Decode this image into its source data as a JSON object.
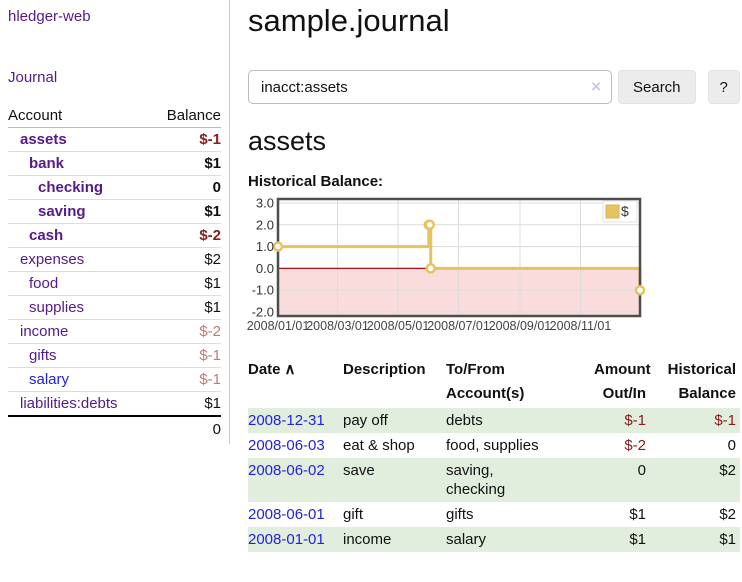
{
  "app": {
    "brand": "hledger-web"
  },
  "nav": {
    "journal": "Journal"
  },
  "sidebar": {
    "header": {
      "account": "Account",
      "balance": "Balance"
    },
    "accounts": [
      {
        "name": "assets",
        "balance": "$-1"
      },
      {
        "name": "bank",
        "balance": "$1"
      },
      {
        "name": "checking",
        "balance": "0"
      },
      {
        "name": "saving",
        "balance": "$1"
      },
      {
        "name": "cash",
        "balance": "$-2"
      },
      {
        "name": "expenses",
        "balance": "$2"
      },
      {
        "name": "food",
        "balance": "$1"
      },
      {
        "name": "supplies",
        "balance": "$1"
      },
      {
        "name": "income",
        "balance": "$-2"
      },
      {
        "name": "gifts",
        "balance": "$-1"
      },
      {
        "name": "salary",
        "balance": "$-1"
      },
      {
        "name": "liabilities:debts",
        "balance": "$1"
      }
    ],
    "total": "0"
  },
  "header": {
    "title": "sample.journal"
  },
  "search": {
    "value": "inacct:assets",
    "clear_icon": "×",
    "search_label": "Search",
    "help_label": "?"
  },
  "account_page": {
    "title": "assets",
    "chart_label": "Historical Balance:"
  },
  "chart_data": {
    "type": "line",
    "title": "Historical Balance",
    "series": [
      {
        "name": "$",
        "color": "#e6c35e",
        "points": [
          [
            "2008-01-01",
            1
          ],
          [
            "2008-06-01",
            2
          ],
          [
            "2008-06-02",
            2
          ],
          [
            "2008-06-03",
            0
          ],
          [
            "2008-12-31",
            -1
          ]
        ],
        "step": true
      }
    ],
    "xticks": [
      {
        "label": "2008/01/01",
        "day": 0
      },
      {
        "label": "2008/03/01",
        "day": 60
      },
      {
        "label": "2008/05/01",
        "day": 121
      },
      {
        "label": "2008/07/01",
        "day": 182
      },
      {
        "label": "2008/09/01",
        "day": 244
      },
      {
        "label": "2008/11/01",
        "day": 305
      }
    ],
    "x_total_days": 365,
    "yticks": [
      3.0,
      2.0,
      1.0,
      0.0,
      -1.0,
      -2.0
    ],
    "ylim": [
      -2,
      3
    ],
    "grid": true,
    "negative_region_color": "#fbdcdc",
    "zero_line_color": "#a81414",
    "border_color": "#4d4d4d",
    "legend": {
      "position": "top-right",
      "label": "$",
      "swatch_color": "#e6c35e"
    }
  },
  "register": {
    "columns": {
      "date": "Date",
      "description": "Description",
      "tofrom": "To/From\nAccount(s)",
      "amount": "Amount\nOut/In",
      "balance": "Historical\nBalance"
    },
    "sort_indicator": "∧",
    "rows": [
      {
        "date": "2008-12-31",
        "description": "pay off",
        "accounts": "debts",
        "amount": "$-1",
        "balance": "$-1"
      },
      {
        "date": "2008-06-03",
        "description": "eat & shop",
        "accounts": "food, supplies",
        "amount": "$-2",
        "balance": "0"
      },
      {
        "date": "2008-06-02",
        "description": "save",
        "accounts": "saving,\nchecking",
        "amount": "0",
        "balance": "$2"
      },
      {
        "date": "2008-06-01",
        "description": "gift",
        "accounts": "gifts",
        "amount": "$1",
        "balance": "$2"
      },
      {
        "date": "2008-01-01",
        "description": "income",
        "accounts": "salary",
        "amount": "$1",
        "balance": "$1"
      }
    ]
  },
  "colors": {
    "link_visited_purple": "#551a8b",
    "link_blue": "#2222dd",
    "negative_strong": "#8b1a1a",
    "negative_soft": "#bd7b7b",
    "row_stripe_green": "#e1eedd",
    "chart_line_gold": "#e6c35e"
  }
}
